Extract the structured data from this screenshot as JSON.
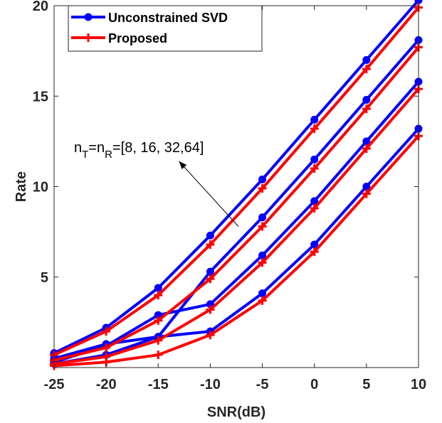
{
  "chart_data": {
    "type": "line",
    "x": [
      -25,
      -20,
      -15,
      -10,
      -5,
      0,
      5,
      10
    ],
    "xlabel": "SNR(dB)",
    "ylabel": "Rate",
    "xlim": [
      -25,
      10
    ],
    "ylim": [
      0,
      20
    ],
    "xticks": [
      "-25",
      "-20",
      "-15",
      "-10",
      "-5",
      "0",
      "5",
      "10"
    ],
    "yticks": [
      "5",
      "10",
      "15",
      "20"
    ],
    "grid": false,
    "legend_position": "top-left",
    "legend": [
      {
        "label": "Unconstrained SVD",
        "color": "#0000FF",
        "marker": "circle"
      },
      {
        "label": "Proposed",
        "color": "#FF0000",
        "marker": "plus"
      }
    ],
    "series": [
      {
        "group": "Unconstrained SVD",
        "values": [
          0.2,
          0.7,
          1.7,
          2.0,
          4.1,
          6.8,
          10.0,
          13.2
        ],
        "color": "#0000FF",
        "marker": "circle"
      },
      {
        "group": "Unconstrained SVD",
        "values": [
          0.3,
          1.2,
          2.9,
          3.5,
          6.2,
          9.2,
          12.5,
          15.8
        ],
        "color": "#0000FF",
        "marker": "circle"
      },
      {
        "group": "Unconstrained SVD",
        "values": [
          0.5,
          1.3,
          1.7,
          5.3,
          8.3,
          11.5,
          14.8,
          18.1
        ],
        "color": "#0000FF",
        "marker": "circle"
      },
      {
        "group": "Unconstrained SVD",
        "values": [
          0.8,
          2.2,
          4.4,
          7.3,
          10.4,
          13.7,
          17.0,
          20.3
        ],
        "color": "#0000FF",
        "marker": "circle"
      },
      {
        "group": "Proposed",
        "values": [
          0.1,
          0.3,
          0.7,
          1.8,
          3.7,
          6.4,
          9.6,
          12.8
        ],
        "color": "#FF0000",
        "marker": "plus"
      },
      {
        "group": "Proposed",
        "values": [
          0.2,
          0.6,
          1.5,
          3.2,
          5.8,
          8.8,
          12.1,
          15.4
        ],
        "color": "#FF0000",
        "marker": "plus"
      },
      {
        "group": "Proposed",
        "values": [
          0.4,
          1.1,
          2.6,
          4.9,
          7.8,
          11.0,
          14.3,
          17.7
        ],
        "color": "#FF0000",
        "marker": "plus"
      },
      {
        "group": "Proposed",
        "values": [
          0.7,
          2.0,
          4.0,
          6.8,
          9.9,
          13.2,
          16.5,
          19.9
        ],
        "color": "#FF0000",
        "marker": "plus"
      }
    ],
    "annotation": {
      "base": "n",
      "sub1": "T",
      "mid": "=n",
      "sub2": "R",
      "rest": "=[8, 16, 32,64]",
      "arrow_from": [
        -7.3,
        7.8
      ],
      "arrow_to": [
        -13.0,
        11.4
      ]
    }
  }
}
